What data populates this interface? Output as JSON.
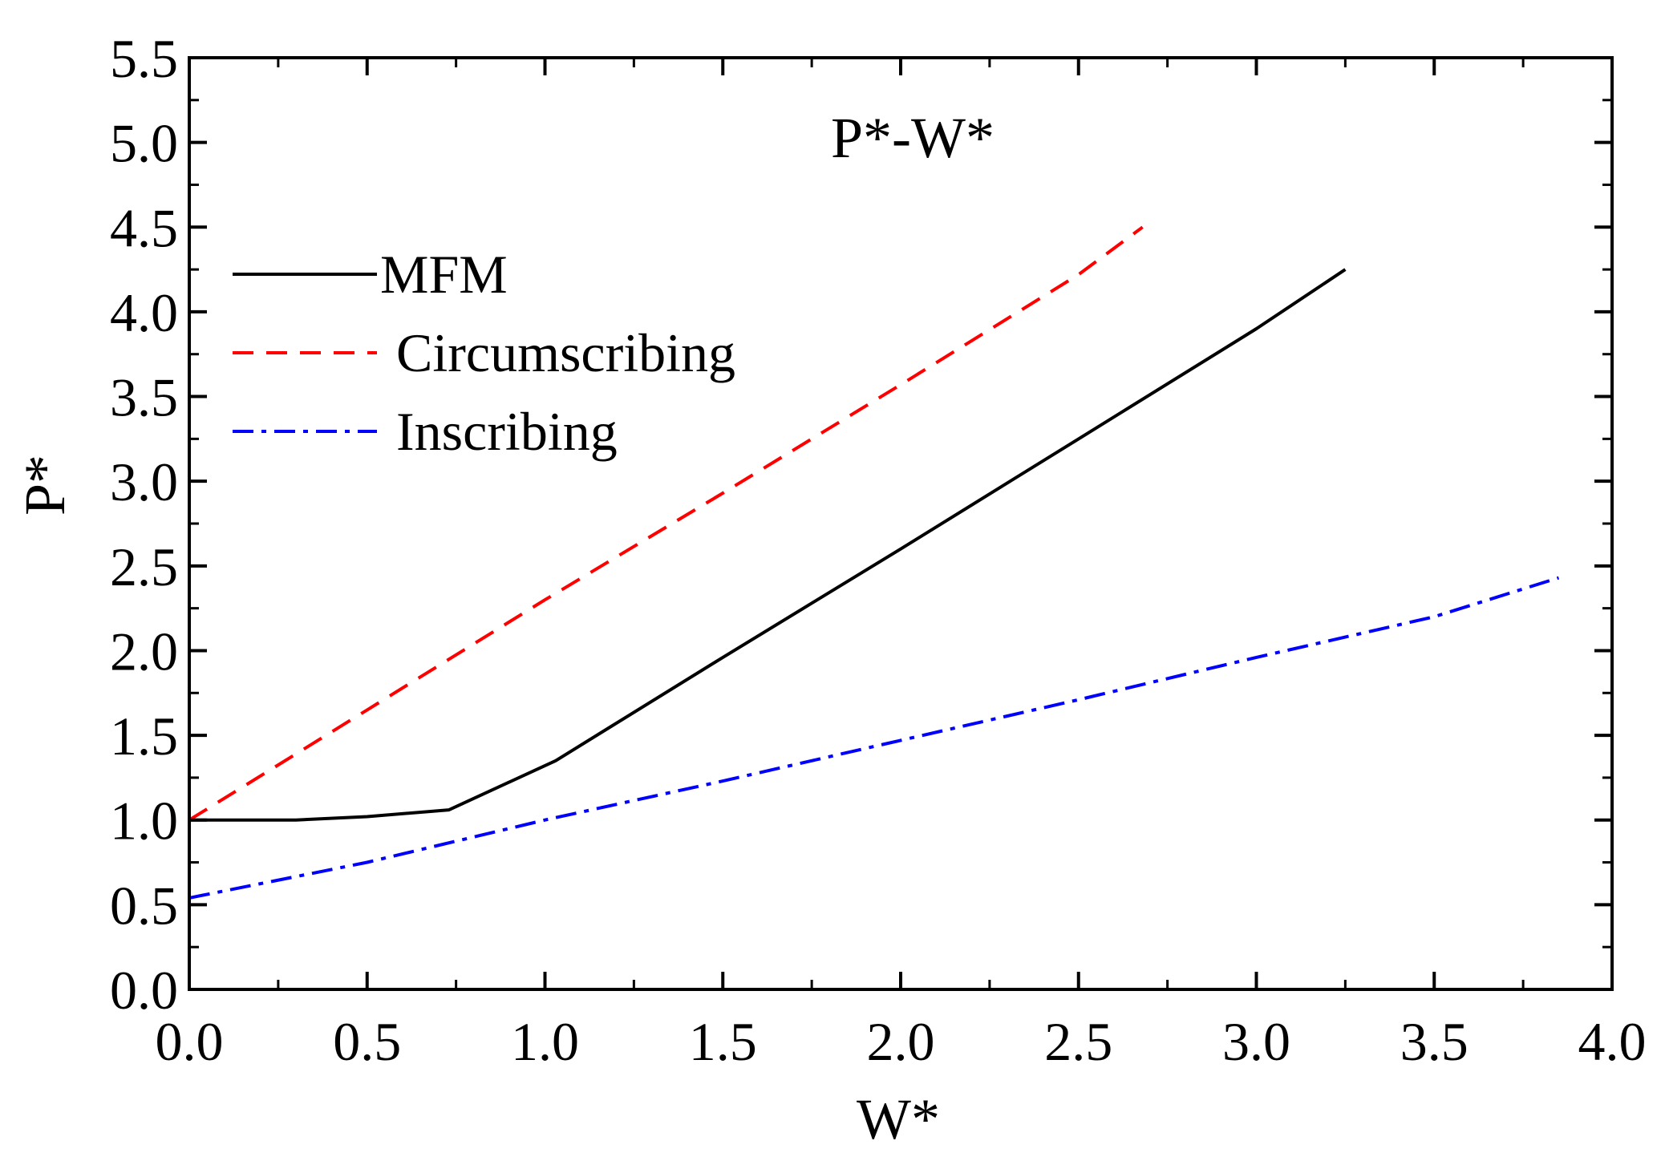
{
  "chart_data": {
    "type": "line",
    "title": "P*-W*",
    "xlabel": "W*",
    "ylabel": "P*",
    "xlim": [
      0.0,
      4.0
    ],
    "ylim": [
      0.0,
      5.5
    ],
    "x_major_ticks": [
      0.0,
      0.5,
      1.0,
      1.5,
      2.0,
      2.5,
      3.0,
      3.5,
      4.0
    ],
    "y_major_ticks": [
      0.0,
      0.5,
      1.0,
      1.5,
      2.0,
      2.5,
      3.0,
      3.5,
      4.0,
      4.5,
      5.0,
      5.5
    ],
    "x_tick_labels": [
      "0.0",
      "0.5",
      "1.0",
      "1.5",
      "2.0",
      "2.5",
      "3.0",
      "3.5",
      "4.0"
    ],
    "y_tick_labels": [
      "0.0",
      "0.5",
      "1.0",
      "1.5",
      "2.0",
      "2.5",
      "3.0",
      "3.5",
      "4.0",
      "4.5",
      "5.0",
      "5.5"
    ],
    "grid": false,
    "legend_position": "top-left",
    "series": [
      {
        "name": "MFM",
        "color": "#000000",
        "style": "solid",
        "points": [
          [
            0.0,
            1.0
          ],
          [
            0.3,
            1.0
          ],
          [
            0.5,
            1.02
          ],
          [
            0.73,
            1.06
          ],
          [
            1.03,
            1.35
          ],
          [
            1.5,
            1.96
          ],
          [
            2.0,
            2.6
          ],
          [
            2.5,
            3.25
          ],
          [
            3.0,
            3.9
          ],
          [
            3.25,
            4.25
          ]
        ]
      },
      {
        "name": "Circumscribing",
        "color": "#ff0000",
        "style": "dashed",
        "points": [
          [
            0.0,
            1.0
          ],
          [
            0.5,
            1.65
          ],
          [
            1.0,
            2.3
          ],
          [
            1.5,
            2.93
          ],
          [
            2.0,
            3.57
          ],
          [
            2.5,
            4.22
          ],
          [
            2.68,
            4.5
          ]
        ]
      },
      {
        "name": "Inscribing",
        "color": "#0000ff",
        "style": "dashdot",
        "points": [
          [
            0.0,
            0.54
          ],
          [
            0.5,
            0.75
          ],
          [
            1.0,
            1.0
          ],
          [
            1.5,
            1.23
          ],
          [
            2.0,
            1.47
          ],
          [
            2.5,
            1.71
          ],
          [
            3.0,
            1.96
          ],
          [
            3.5,
            2.2
          ],
          [
            3.85,
            2.43
          ]
        ]
      }
    ]
  }
}
